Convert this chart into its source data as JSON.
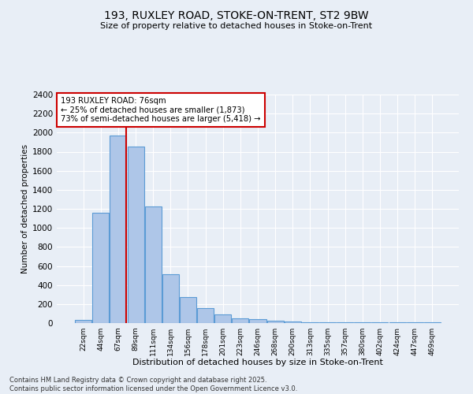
{
  "title1": "193, RUXLEY ROAD, STOKE-ON-TRENT, ST2 9BW",
  "title2": "Size of property relative to detached houses in Stoke-on-Trent",
  "xlabel": "Distribution of detached houses by size in Stoke-on-Trent",
  "ylabel": "Number of detached properties",
  "categories": [
    "22sqm",
    "44sqm",
    "67sqm",
    "89sqm",
    "111sqm",
    "134sqm",
    "156sqm",
    "178sqm",
    "201sqm",
    "223sqm",
    "246sqm",
    "268sqm",
    "290sqm",
    "313sqm",
    "335sqm",
    "357sqm",
    "380sqm",
    "402sqm",
    "424sqm",
    "447sqm",
    "469sqm"
  ],
  "values": [
    30,
    1160,
    1970,
    1850,
    1225,
    515,
    270,
    155,
    90,
    50,
    40,
    25,
    15,
    10,
    5,
    5,
    5,
    5,
    5,
    5,
    5
  ],
  "bar_color": "#aec6e8",
  "bar_edge_color": "#5b9bd5",
  "vline_x_index": 2,
  "vline_color": "#cc0000",
  "annotation_text": "193 RUXLEY ROAD: 76sqm\n← 25% of detached houses are smaller (1,873)\n73% of semi-detached houses are larger (5,418) →",
  "annotation_box_color": "#ffffff",
  "annotation_box_edge": "#cc0000",
  "ylim": [
    0,
    2400
  ],
  "yticks": [
    0,
    200,
    400,
    600,
    800,
    1000,
    1200,
    1400,
    1600,
    1800,
    2000,
    2200,
    2400
  ],
  "bg_color": "#e8eef6",
  "grid_color": "#ffffff",
  "footer1": "Contains HM Land Registry data © Crown copyright and database right 2025.",
  "footer2": "Contains public sector information licensed under the Open Government Licence v3.0."
}
